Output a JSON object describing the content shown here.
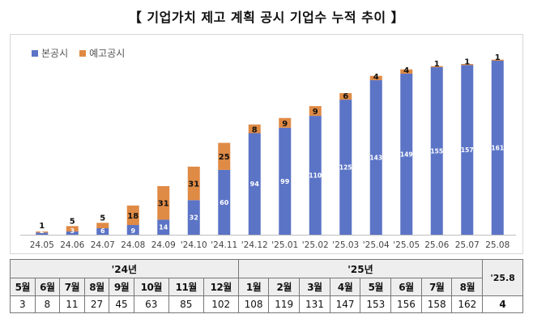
{
  "title": "【 기업가치 제고 계획 공시 기업수 누적 추이 】",
  "colors": {
    "main": "#5b74c6",
    "preliminary": "#df8a45",
    "axis": "#bfbfbf"
  },
  "chart_data": {
    "type": "bar",
    "stacked": true,
    "legend_position": "top-left",
    "grid": false,
    "categories": [
      "24.05",
      "24.06",
      "24.07",
      "24.08",
      "24.09",
      "'24.10",
      "'24.11",
      "'24.12",
      "'25.01",
      "'25.02",
      "'25.03",
      "'25.04",
      "'25.05",
      "25.06",
      "25.07",
      "25.08"
    ],
    "series": [
      {
        "name": "본공시",
        "color": "#5b74c6",
        "values": [
          2,
          3,
          6,
          9,
          14,
          32,
          60,
          94,
          99,
          110,
          125,
          143,
          149,
          155,
          157,
          161
        ]
      },
      {
        "name": "예고공시",
        "color": "#df8a45",
        "values": [
          1,
          5,
          5,
          18,
          31,
          31,
          25,
          8,
          9,
          9,
          6,
          4,
          4,
          1,
          1,
          1
        ]
      }
    ],
    "ylim": [
      0,
      170
    ]
  },
  "table": {
    "year_24": "'24년",
    "year_25": "'25년",
    "last_header": "'25.8",
    "months_24": [
      "5월",
      "6월",
      "7월",
      "8월",
      "9월",
      "10월",
      "11월",
      "12월"
    ],
    "months_25": [
      "1월",
      "2월",
      "3월",
      "4월",
      "5월",
      "6월",
      "7월",
      "8월"
    ],
    "values": [
      "3",
      "8",
      "11",
      "27",
      "45",
      "63",
      "85",
      "102",
      "108",
      "119",
      "131",
      "147",
      "153",
      "156",
      "158",
      "162"
    ],
    "last_value": "4"
  }
}
